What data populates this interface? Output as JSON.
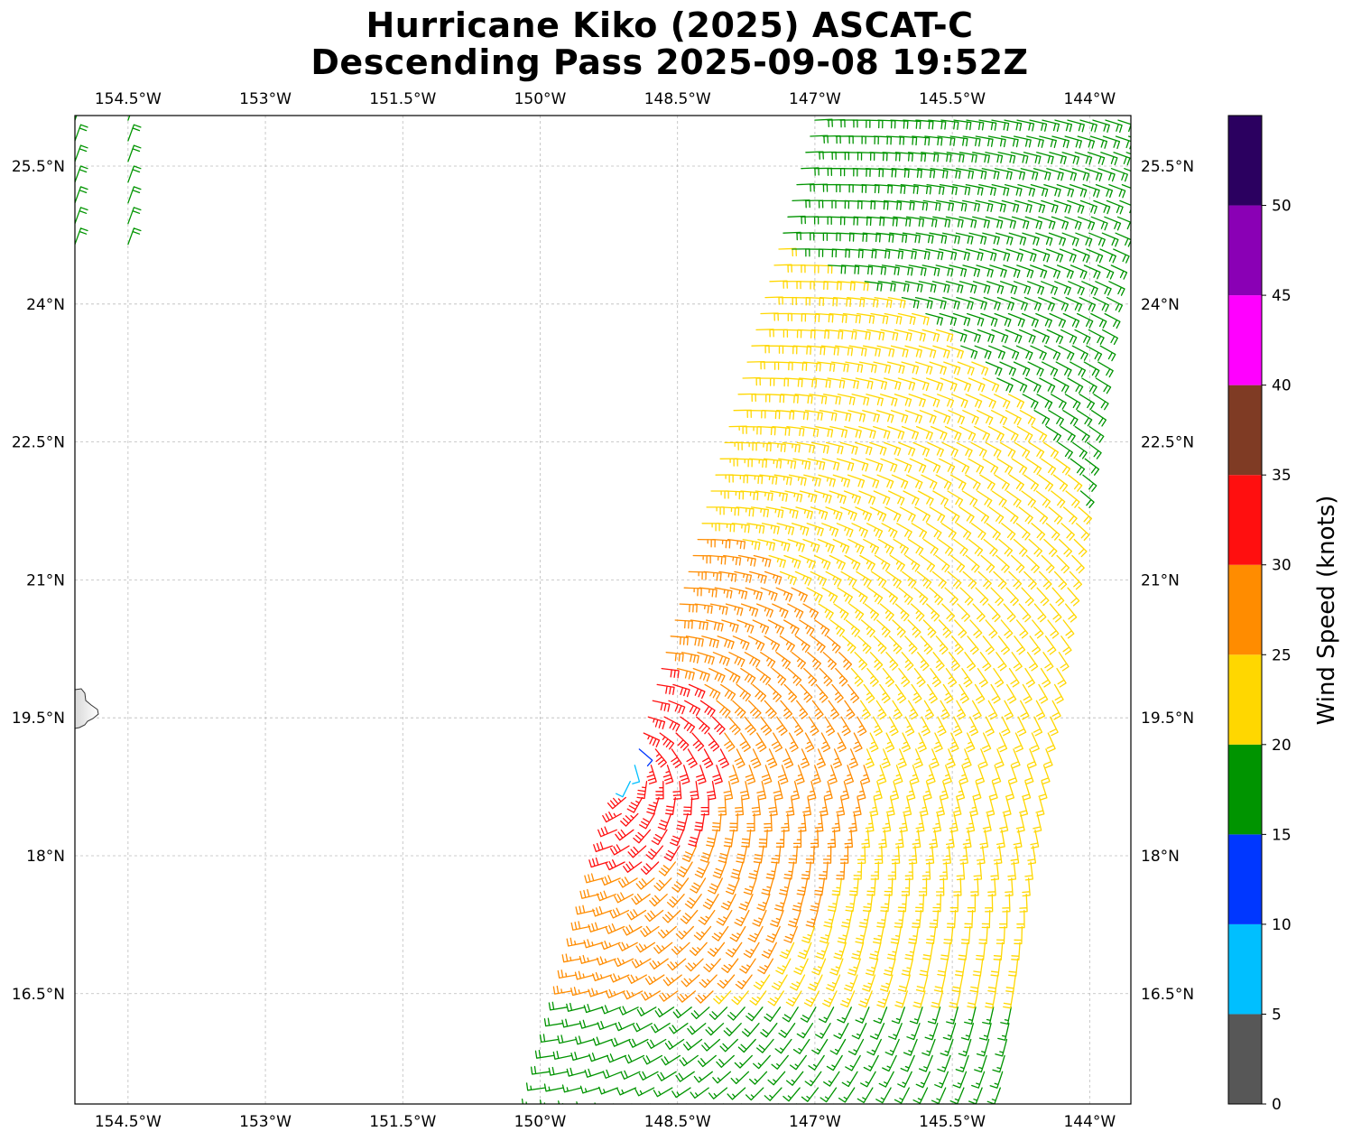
{
  "chart_data": {
    "type": "wind-barb-map",
    "title_lines": [
      "Hurricane Kiko (2025) ASCAT-C",
      "Descending Pass 2025-09-08 19:52Z"
    ],
    "map": {
      "lon_range": [
        -155.08,
        -143.55
      ],
      "lat_range": [
        15.3,
        26.05
      ],
      "lon_ticks": [
        -154.5,
        -153,
        -151.5,
        -150,
        -148.5,
        -147,
        -145.5,
        -144
      ],
      "lon_tick_labels": [
        "154.5°W",
        "153°W",
        "151.5°W",
        "150°W",
        "148.5°W",
        "147°W",
        "145.5°W",
        "144°W"
      ],
      "lat_ticks": [
        25.5,
        24,
        22.5,
        21,
        19.5,
        18,
        16.5
      ],
      "lat_tick_labels": [
        "25.5°N",
        "24°N",
        "22.5°N",
        "21°N",
        "19.5°N",
        "18°N",
        "16.5°N"
      ],
      "grid": true,
      "coastline_note": "Big Island of Hawaii at left edge near 19.5°N"
    },
    "colorbar": {
      "label": "Wind Speed (knots)",
      "bounds": [
        0,
        5,
        10,
        15,
        20,
        25,
        30,
        35,
        40,
        45,
        50,
        55
      ],
      "tick_labels": [
        "0",
        "5",
        "10",
        "15",
        "20",
        "25",
        "30",
        "35",
        "40",
        "45",
        "50"
      ],
      "colors": [
        "#575757",
        "#00bfff",
        "#0037ff",
        "#009400",
        "#ffd700",
        "#ff8c00",
        "#ff0f0f",
        "#7f3b24",
        "#ff00ff",
        "#8a00b5",
        "#2b0060"
      ]
    },
    "swaths": [
      {
        "name": "main-pass",
        "corners": {
          "bl": [
            -150.0,
            15.3
          ],
          "br": [
            -145.0,
            15.3
          ],
          "tr": [
            -143.55,
            26.0
          ],
          "tl": [
            -147.0,
            26.0
          ]
        },
        "rows": 62,
        "cols": 26,
        "wind_field": {
          "center": [
            -149.2,
            19.0
          ],
          "rmw_deg": 0.35,
          "vmax_kt": 34,
          "env_kt": 17,
          "decay_scale_deg": 3.2
        }
      },
      {
        "name": "edge-pass-nw",
        "corners": {
          "bl": [
            -155.08,
            24.65
          ],
          "br": [
            -154.5,
            24.65
          ],
          "tr": [
            -154.5,
            26.0
          ],
          "tl": [
            -155.08,
            26.0
          ]
        },
        "rows": 7,
        "cols": 2,
        "wind_field": {
          "uniform_kt": 19,
          "direction_deg": 70
        }
      }
    ]
  }
}
